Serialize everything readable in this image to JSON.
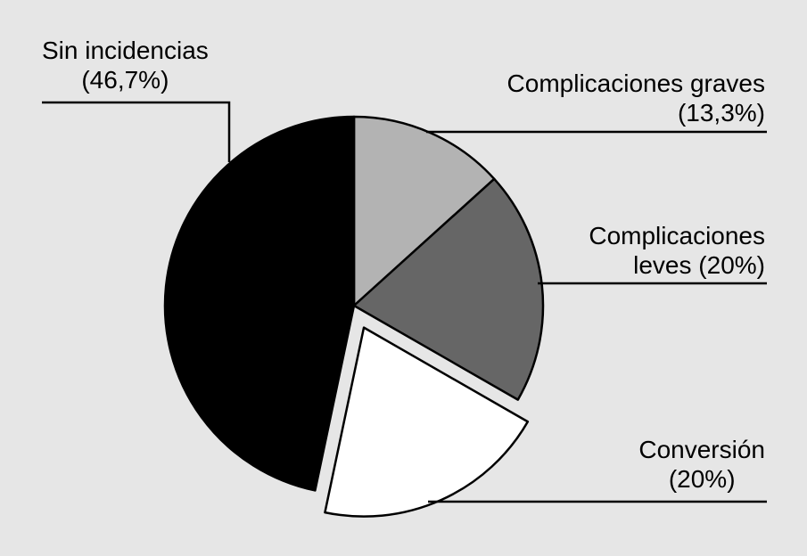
{
  "chart_data": {
    "type": "pie",
    "categories": [
      "Complicaciones graves",
      "Complicaciones leves",
      "Conversión",
      "Sin incidencias"
    ],
    "values": [
      13.3,
      20,
      20,
      46.7
    ],
    "value_labels": [
      "(13,3%)",
      "(20%)",
      "(20%)",
      "(46,7%)"
    ],
    "colors": [
      "#b3b3b3",
      "#666666",
      "#ffffff",
      "#000000"
    ],
    "explode": [
      false,
      false,
      true,
      false
    ]
  }
}
